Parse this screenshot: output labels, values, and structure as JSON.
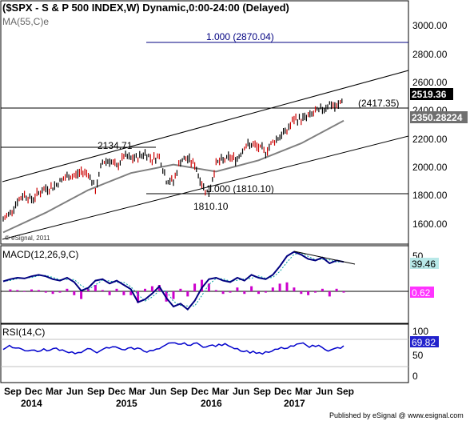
{
  "window": {
    "title": "($SPX - S & P 500 INDEX,W) Dynamic,0:00-24:00 (Delayed)",
    "ma_label": "MA(55,C)e",
    "watermark": "© eSignal, 2011",
    "publisher": "Published by eSignal @ www.esignal.com"
  },
  "colors": {
    "price_bar": "#cc0000",
    "price_bar_alt": "#000000",
    "ma_line": "#808080",
    "trend_line": "#000000",
    "level_line": "#000080",
    "macd_line": "#000080",
    "macd_signal": "#00a0a0",
    "macd_hist": "#cc00cc",
    "rsi_line": "#0000cc",
    "tag_price_bg": "#000000",
    "tag_ma_bg": "#707070"
  },
  "price_panel": {
    "y_ticks": [
      "3000.00",
      "2800.00",
      "2600.00",
      "2400.00",
      "2200.00",
      "2000.00",
      "1800.00",
      "1600.00"
    ],
    "tag_close": "2519.36",
    "tag_ma": "2350.28224",
    "annotations": {
      "proj_level": "1.000 (2870.04)",
      "resistance": "(2417.35)",
      "swing_high": "2134.71",
      "low_level": "1.000 (1810.10)",
      "low_value": "1810.10"
    }
  },
  "macd_panel": {
    "label": "MACD(12,26,9,C)",
    "y_tick": "50",
    "tag_macd": "39.46",
    "tag_hist": "0.62"
  },
  "rsi_panel": {
    "label": "RSI(14,C)",
    "y_ticks": [
      "100",
      "50",
      "0"
    ],
    "tag_rsi": "69.82"
  },
  "x_axis": {
    "months": [
      "Sep",
      "Dec",
      "Mar",
      "Jun",
      "Sep",
      "Dec",
      "Mar",
      "Jun",
      "Sep",
      "Dec",
      "Mar",
      "Jun",
      "Sep",
      "Dec",
      "Mar",
      "Jun",
      "Sep"
    ],
    "years": [
      "2014",
      "2015",
      "2016",
      "2017"
    ]
  },
  "chart_data": {
    "type": "candlestick",
    "timeframe": "weekly",
    "y_unit": "index points",
    "ylim": [
      1500,
      3100
    ],
    "price_series": [
      [
        "2013-09",
        1650
      ],
      [
        "2013-10",
        1700
      ],
      [
        "2013-11",
        1780
      ],
      [
        "2013-12",
        1830
      ],
      [
        "2014-01",
        1790
      ],
      [
        "2014-02",
        1840
      ],
      [
        "2014-03",
        1870
      ],
      [
        "2014-04",
        1880
      ],
      [
        "2014-05",
        1920
      ],
      [
        "2014-06",
        1955
      ],
      [
        "2014-07",
        1960
      ],
      [
        "2014-08",
        1990
      ],
      [
        "2014-09",
        1980
      ],
      [
        "2014-10",
        1860
      ],
      [
        "2014-11",
        2060
      ],
      [
        "2014-12",
        2070
      ],
      [
        "2015-01",
        2020
      ],
      [
        "2015-02",
        2100
      ],
      [
        "2015-03",
        2080
      ],
      [
        "2015-04",
        2090
      ],
      [
        "2015-05",
        2120
      ],
      [
        "2015-06",
        2080
      ],
      [
        "2015-07",
        2100
      ],
      [
        "2015-08",
        1930
      ],
      [
        "2015-09",
        1920
      ],
      [
        "2015-10",
        2070
      ],
      [
        "2015-11",
        2080
      ],
      [
        "2015-12",
        2040
      ],
      [
        "2016-01",
        1900
      ],
      [
        "2016-02",
        1830
      ],
      [
        "2016-03",
        2050
      ],
      [
        "2016-04",
        2070
      ],
      [
        "2016-05",
        2090
      ],
      [
        "2016-06",
        2080
      ],
      [
        "2016-07",
        2170
      ],
      [
        "2016-08",
        2180
      ],
      [
        "2016-09",
        2160
      ],
      [
        "2016-10",
        2130
      ],
      [
        "2016-11",
        2200
      ],
      [
        "2016-12",
        2240
      ],
      [
        "2017-01",
        2280
      ],
      [
        "2017-02",
        2360
      ],
      [
        "2017-03",
        2360
      ],
      [
        "2017-04",
        2380
      ],
      [
        "2017-05",
        2410
      ],
      [
        "2017-06",
        2430
      ],
      [
        "2017-07",
        2470
      ],
      [
        "2017-08",
        2440
      ],
      [
        "2017-09",
        2519.36
      ]
    ],
    "ma_55_series": [
      [
        "2013-09",
        1560
      ],
      [
        "2014-03",
        1700
      ],
      [
        "2014-09",
        1860
      ],
      [
        "2015-03",
        1980
      ],
      [
        "2015-09",
        2040
      ],
      [
        "2016-03",
        1990
      ],
      [
        "2016-09",
        2070
      ],
      [
        "2017-03",
        2190
      ],
      [
        "2017-09",
        2350.28
      ]
    ],
    "levels": [
      2870.04,
      2417.35,
      2134.71,
      1810.1
    ],
    "macd_last": 39.46,
    "hist_last": 0.62,
    "rsi_last": 69.82
  }
}
